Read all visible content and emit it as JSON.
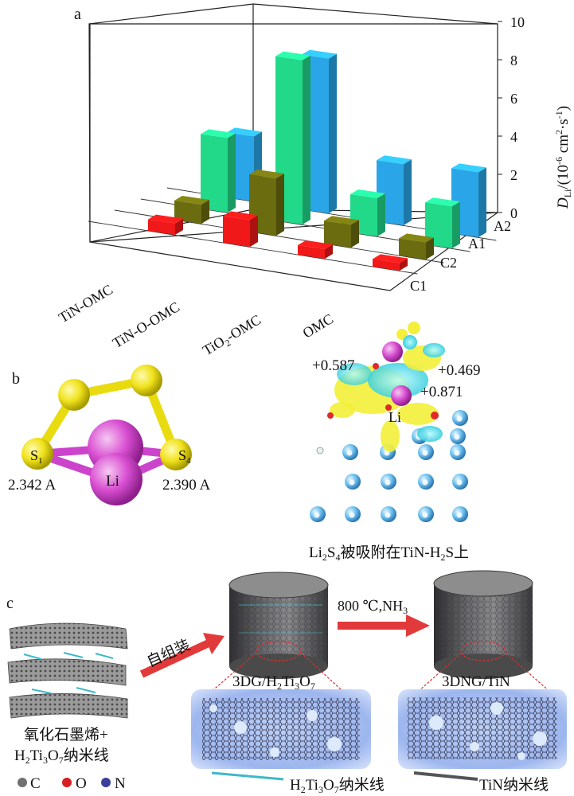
{
  "panel_a": {
    "label": "a",
    "ylabel_main": "D",
    "ylabel_sub": "Li",
    "ylabel_rest": "/(10",
    "ylabel_exp": "-6",
    "ylabel_unit": " cm",
    "ylabel_unit_exp": "2",
    "ylabel_tail": "·s",
    "ylabel_tail_exp": "-1",
    "ylabel_close": ")",
    "chart_data": {
      "type": "bar",
      "categories": [
        "TiN-OMC",
        "TiN-O-OMC",
        "TiO2-OMC",
        "OMC"
      ],
      "depth_labels": [
        "C1",
        "C2",
        "A1",
        "A2"
      ],
      "z_ticks": [
        "0",
        "2",
        "4",
        "6",
        "8",
        "10"
      ],
      "zlim": [
        0,
        10
      ],
      "series": [
        {
          "name": "C1",
          "color": "#f01818",
          "values": [
            0.6,
            1.4,
            0.5,
            0.4
          ]
        },
        {
          "name": "C2",
          "color": "#6b6b10",
          "values": [
            1.0,
            3.0,
            1.2,
            0.9
          ]
        },
        {
          "name": "A1",
          "color": "#22d98a",
          "values": [
            3.9,
            8.6,
            2.0,
            2.2
          ]
        },
        {
          "name": "A2",
          "color": "#2aa6e8",
          "values": [
            3.4,
            8.1,
            3.2,
            3.4
          ]
        }
      ]
    }
  },
  "panel_b": {
    "label": "b",
    "atom_s1": "S",
    "atom_s1_sub": "1",
    "atom_s4": "S",
    "atom_s4_sub": "4",
    "atom_li": "Li",
    "bond_left": "2.342 A",
    "bond_right": "2.390 A",
    "charge_1": "+0.587",
    "charge_2": "+0.469",
    "charge_3": "+0.871",
    "li_right": "Li",
    "caption_a": "Li",
    "caption_sub1": "2",
    "caption_b": "S",
    "caption_sub2": "4",
    "caption_c": "被吸附在TiN-H",
    "caption_sub3": "2",
    "caption_d": "S上"
  },
  "panel_c": {
    "label": "c",
    "self_assembly": "自组装",
    "cond_a": "800 ℃,NH",
    "cond_sub": "3",
    "product1_a": "3DG/H",
    "product1_s1": "2",
    "product1_b": "Ti",
    "product1_s2": "3",
    "product1_c": "O",
    "product1_s3": "7",
    "product2": "3DNG/TiN",
    "start_line1": "氧化石墨烯+",
    "start_line2_a": "H",
    "start_line2_s1": "2",
    "start_line2_b": "Ti",
    "start_line2_s2": "3",
    "start_line2_c": "O",
    "start_line2_s3": "7",
    "start_line2_d": "纳米线",
    "legend_c": "C",
    "legend_o": "O",
    "legend_n": "N",
    "legend_nw1_a": "H",
    "legend_nw1_s1": "2",
    "legend_nw1_b": "Ti",
    "legend_nw1_s2": "3",
    "legend_nw1_c": "O",
    "legend_nw1_s3": "7",
    "legend_nw1_d": "纳米线",
    "legend_nw2": "TiN纳米线",
    "colors": {
      "arrow": "#e23a3a",
      "carbon": "#707070",
      "oxygen": "#d42020",
      "nitrogen": "#3b3f9a",
      "h2ti3o7_wire": "#3fb8c8",
      "tin_wire": "#555555"
    }
  }
}
